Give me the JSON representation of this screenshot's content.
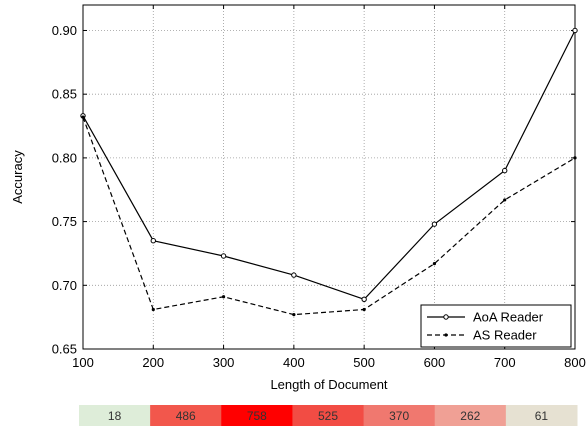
{
  "chart_data": {
    "type": "line",
    "xlabel": "Length of Document",
    "ylabel": "Accuracy",
    "x": [
      100,
      200,
      300,
      400,
      500,
      600,
      700,
      800
    ],
    "xlim": [
      100,
      800
    ],
    "ylim": [
      0.65,
      0.92
    ],
    "xticks": [
      "100",
      "200",
      "300",
      "400",
      "500",
      "600",
      "700",
      "800"
    ],
    "yticks": [
      "0.65",
      "0.70",
      "0.75",
      "0.80",
      "0.85",
      "0.90"
    ],
    "grid": true,
    "legend_position": "bottom-right",
    "series": [
      {
        "name": "AoA Reader",
        "style": "solid-circle",
        "color": "#000000",
        "values": [
          0.833,
          0.735,
          0.723,
          0.708,
          0.689,
          0.748,
          0.79,
          0.9
        ]
      },
      {
        "name": "AS Reader",
        "style": "dashed-dot",
        "color": "#000000",
        "values": [
          0.832,
          0.681,
          0.691,
          0.677,
          0.681,
          0.717,
          0.767,
          0.8
        ]
      }
    ],
    "count_bar": {
      "values": [
        18,
        486,
        758,
        525,
        370,
        262,
        61
      ],
      "colors": [
        "#deedd9",
        "#f2574c",
        "#ff0000",
        "#f24c44",
        "#f0786f",
        "#f0a095",
        "#e6e1d2"
      ]
    }
  }
}
